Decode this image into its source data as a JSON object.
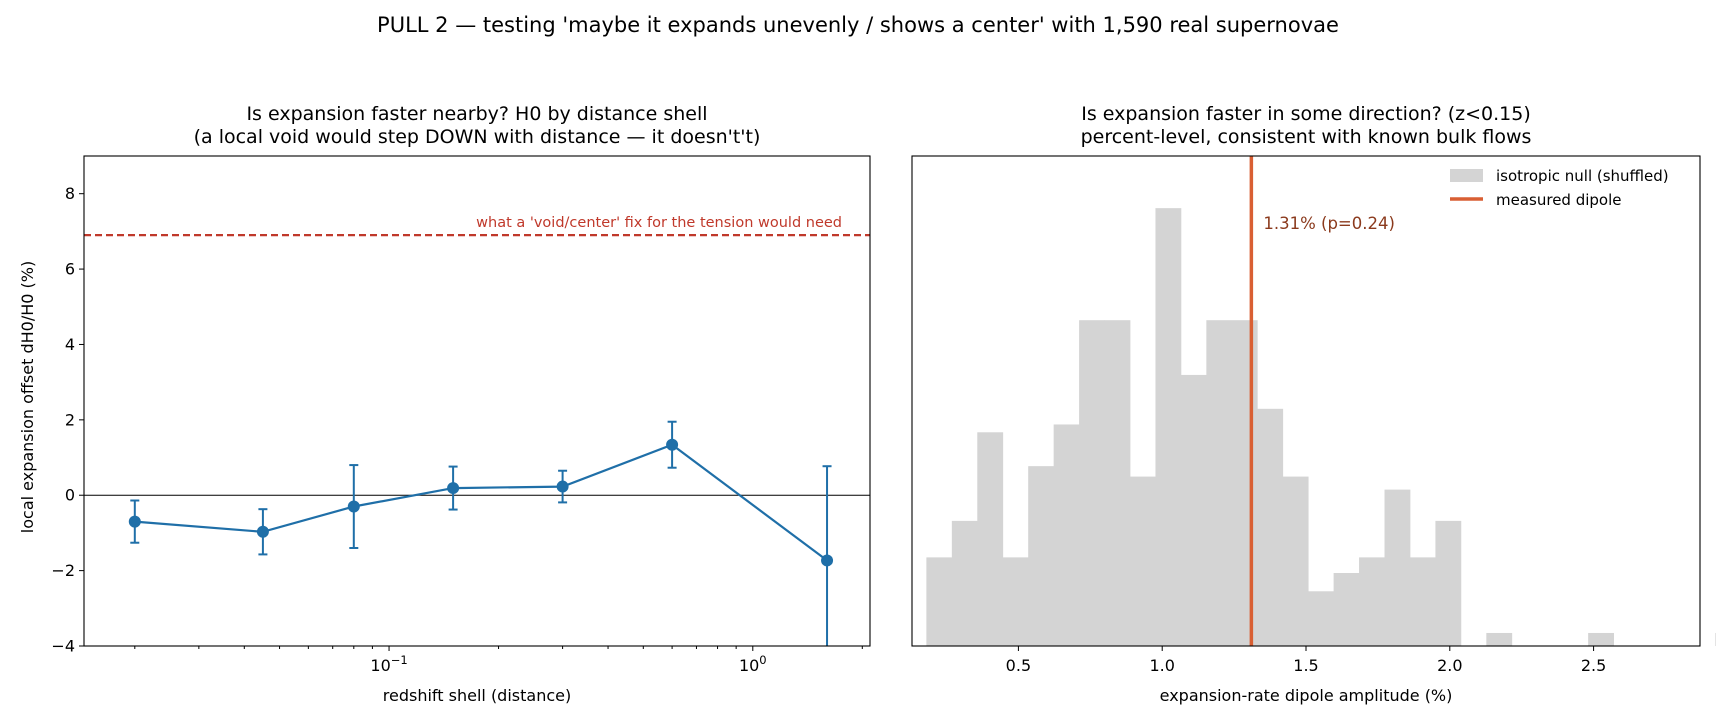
{
  "figure": {
    "suptitle": "PULL 2 — testing 'maybe it expands unevenly / shows a center' with 1,590 real supernovae"
  },
  "chart_data": [
    {
      "type": "line",
      "title_line1": "Is expansion faster nearby? H0 by distance shell",
      "title_line2": "(a local void would step DOWN with distance — it doesn't't)",
      "xlabel": "redshift shell (distance)",
      "ylabel": "local expansion offset  dH0/H0  (%)",
      "xscale": "log",
      "xlim": [
        0.0145,
        2.1
      ],
      "ylim": [
        -4,
        9
      ],
      "yticks": [
        -4,
        -2,
        0,
        2,
        4,
        6,
        8
      ],
      "xticks_major": [
        {
          "value": 0.1,
          "base": "10",
          "exp": "−1"
        },
        {
          "value": 1.0,
          "base": "10",
          "exp": "0"
        }
      ],
      "series": [
        {
          "x": [
            0.02,
            0.045,
            0.08,
            0.15,
            0.3,
            0.6,
            1.6
          ],
          "y": [
            -0.7,
            -0.97,
            -0.3,
            0.19,
            0.23,
            1.34,
            -1.73
          ],
          "yerr": [
            0.56,
            0.6,
            1.1,
            0.57,
            0.42,
            0.61,
            2.5
          ]
        }
      ],
      "reference_line": {
        "y": 6.9,
        "label": "what a 'void/center' fix for the tension would need",
        "color": "#c0392b"
      },
      "zero_line": 0,
      "colors": {
        "series": "#1f6fa8"
      }
    },
    {
      "type": "histogram",
      "title_line1": "Is expansion faster in some direction? (z<0.15)",
      "title_line2": "percent-level, consistent with known bulk flows",
      "xlabel": "expansion-rate dipole amplitude  (%)",
      "ylabel": "",
      "xlim": [
        0.13,
        2.87
      ],
      "xticks": [
        0.5,
        1.0,
        1.5,
        2.0,
        2.5
      ],
      "bin_start": 0.18,
      "bin_width": 0.0885,
      "counts": [
        3.4,
        4.8,
        8.2,
        3.4,
        6.9,
        8.5,
        12.5,
        12.5,
        6.5,
        16.8,
        10.4,
        12.5,
        12.5,
        9.1,
        6.5,
        2.1,
        2.8,
        3.4,
        6.0,
        3.4,
        4.8,
        0,
        0.5,
        0,
        0,
        0,
        0.5,
        0,
        0,
        0,
        0,
        0.5
      ],
      "ylim": [
        0,
        18.8
      ],
      "measured": {
        "value": 1.31,
        "label": "1.31%  (p=0.24)"
      },
      "legend": [
        "isotropic null (shuffled)",
        "measured dipole"
      ],
      "legend_position": "top-right",
      "colors": {
        "hist": "#d4d4d4",
        "measured": "#d95f33",
        "measured_text": "#8b3a1d"
      }
    }
  ]
}
